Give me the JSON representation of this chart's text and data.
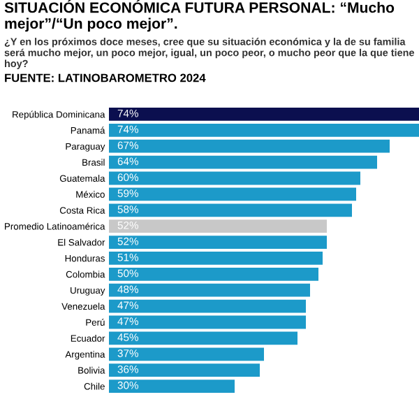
{
  "chart_data": {
    "type": "bar",
    "orientation": "horizontal",
    "relative": false,
    "title": "SITUACIÓN ECONÓMICA FUTURA PERSONAL: “Mucho mejor”/“Un poco mejor”.",
    "subtitle": "¿Y en los próximos doce meses, cree que su situación económica y la de su familia será mucho mejor, un poco mejor, igual, un poco peor, o mucho peor que la que tiene hoy?",
    "annotations": [
      "FUENTE: LATINOBAROMETRO 2024"
    ],
    "categories": [
      "República Dominicana",
      "Panamá",
      "Paraguay",
      "Brasil",
      "Guatemala",
      "México",
      "Costa Rica",
      "Promedio Latinoamérica",
      "El Salvador",
      "Honduras",
      "Colombia",
      "Uruguay",
      "Venezuela",
      "Perú",
      "Ecuador",
      "Argentina",
      "Bolivia",
      "Chile"
    ],
    "values": [
      74,
      74,
      67,
      64,
      60,
      59,
      58,
      52,
      52,
      51,
      50,
      48,
      47,
      47,
      45,
      37,
      36,
      30
    ],
    "value_labels": [
      "74%",
      "74%",
      "67%",
      "64%",
      "60%",
      "59%",
      "58%",
      "52%",
      "52%",
      "51%",
      "50%",
      "48%",
      "47%",
      "47%",
      "45%",
      "37%",
      "36%",
      "30%"
    ],
    "colors": [
      "#0b0f4f",
      "#1c9ac9",
      "#1c9ac9",
      "#1c9ac9",
      "#1c9ac9",
      "#1c9ac9",
      "#1c9ac9",
      "#c8c8c8",
      "#1c9ac9",
      "#1c9ac9",
      "#1c9ac9",
      "#1c9ac9",
      "#1c9ac9",
      "#1c9ac9",
      "#1c9ac9",
      "#1c9ac9",
      "#1c9ac9",
      "#1c9ac9"
    ],
    "xlim": [
      0,
      74
    ],
    "tick_labels": "y",
    "grid": false,
    "legend": false
  }
}
